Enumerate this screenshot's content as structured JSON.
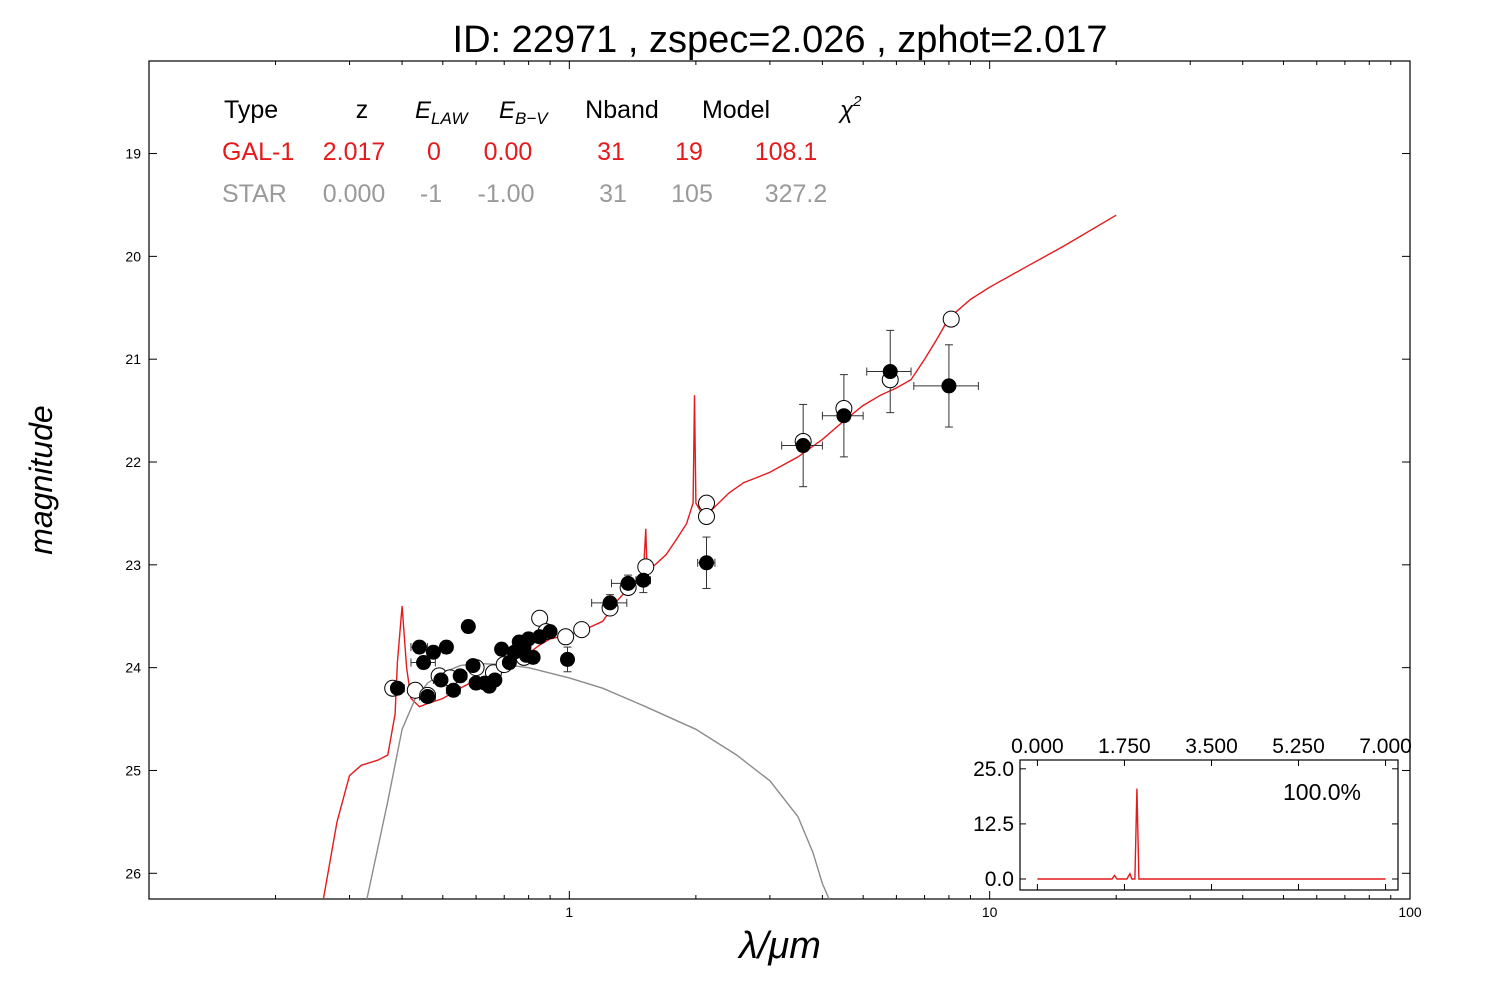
{
  "chart_data": [
    {
      "type": "scatter",
      "title": "ID:  22971 , zspec=2.026 , zphot=2.017",
      "xlabel": "λ/μm",
      "ylabel": "magnitude",
      "x_scale": "log",
      "xlim": [
        0.1,
        100
      ],
      "ylim": [
        26.25,
        18.1
      ],
      "y_inverted": true,
      "grid": false,
      "x_ticks": [
        {
          "value": 1,
          "label": "1"
        },
        {
          "value": 10,
          "label": "10"
        },
        {
          "value": 100,
          "label": "100"
        }
      ],
      "y_ticks": [
        {
          "value": 19,
          "label": "19"
        },
        {
          "value": 20,
          "label": "20"
        },
        {
          "value": 21,
          "label": "21"
        },
        {
          "value": 22,
          "label": "22"
        },
        {
          "value": 23,
          "label": "23"
        },
        {
          "value": 24,
          "label": "24"
        },
        {
          "value": 25,
          "label": "25"
        },
        {
          "value": 26,
          "label": "26"
        }
      ],
      "fit_table": {
        "headers": [
          "Type",
          "z",
          "E_LAW",
          "E_B−V",
          "Nband",
          "Model",
          "χ²"
        ],
        "rows": [
          {
            "type": "GAL-1",
            "z": "2.017",
            "elaw": "0",
            "ebv": "0.00",
            "nband": "31",
            "model": "19",
            "chi2": "108.1",
            "color": "#e41a1c"
          },
          {
            "type": "STAR",
            "z": "0.000",
            "elaw": "-1",
            "ebv": "-1.00",
            "nband": "31",
            "model": "105",
            "chi2": "327.2",
            "color": "#9a9a9a"
          }
        ]
      },
      "colors": {
        "galaxy_model": "#e41a1c",
        "star_model": "#8c8c8c",
        "observed": "#000000",
        "model_mag": "#ffffff"
      },
      "series": [
        {
          "kind": "line",
          "color": "#e41a1c",
          "points": [
            [
              0.26,
              26.3
            ],
            [
              0.28,
              25.5
            ],
            [
              0.3,
              25.05
            ],
            [
              0.32,
              24.95
            ],
            [
              0.35,
              24.9
            ],
            [
              0.37,
              24.85
            ],
            [
              0.385,
              24.45
            ],
            [
              0.39,
              23.95
            ],
            [
              0.4,
              23.4
            ],
            [
              0.41,
              24.0
            ],
            [
              0.42,
              24.3
            ],
            [
              0.44,
              24.38
            ],
            [
              0.46,
              24.35
            ],
            [
              0.5,
              24.3
            ],
            [
              0.55,
              24.2
            ],
            [
              0.6,
              24.12
            ],
            [
              0.65,
              24.07
            ],
            [
              0.7,
              24.0
            ],
            [
              0.75,
              23.93
            ],
            [
              0.8,
              23.86
            ],
            [
              0.85,
              23.78
            ],
            [
              0.9,
              23.72
            ],
            [
              1.0,
              23.68
            ],
            [
              1.1,
              23.62
            ],
            [
              1.2,
              23.55
            ],
            [
              1.3,
              23.35
            ],
            [
              1.4,
              23.2
            ],
            [
              1.5,
              23.08
            ],
            [
              1.52,
              22.65
            ],
            [
              1.53,
              23.05
            ],
            [
              1.6,
              23.0
            ],
            [
              1.7,
              22.9
            ],
            [
              1.8,
              22.75
            ],
            [
              1.9,
              22.6
            ],
            [
              1.97,
              22.4
            ],
            [
              1.985,
              21.35
            ],
            [
              2.0,
              22.4
            ],
            [
              2.1,
              22.55
            ],
            [
              2.2,
              22.45
            ],
            [
              2.4,
              22.3
            ],
            [
              2.6,
              22.2
            ],
            [
              2.8,
              22.15
            ],
            [
              3.0,
              22.1
            ],
            [
              3.5,
              21.95
            ],
            [
              4.0,
              21.78
            ],
            [
              4.5,
              21.6
            ],
            [
              5.0,
              21.45
            ],
            [
              5.5,
              21.35
            ],
            [
              6.0,
              21.28
            ],
            [
              6.5,
              21.2
            ],
            [
              7.0,
              21.0
            ],
            [
              7.5,
              20.8
            ],
            [
              8.0,
              20.6
            ],
            [
              9.0,
              20.42
            ],
            [
              10.0,
              20.3
            ],
            [
              12.0,
              20.12
            ],
            [
              15.0,
              19.9
            ],
            [
              20.0,
              19.6
            ]
          ]
        },
        {
          "kind": "line",
          "color": "#8c8c8c",
          "points": [
            [
              0.33,
              26.3
            ],
            [
              0.37,
              25.3
            ],
            [
              0.4,
              24.6
            ],
            [
              0.43,
              24.3
            ],
            [
              0.46,
              24.15
            ],
            [
              0.5,
              24.05
            ],
            [
              0.55,
              23.98
            ],
            [
              0.6,
              23.96
            ],
            [
              0.7,
              23.97
            ],
            [
              0.8,
              24.0
            ],
            [
              1.0,
              24.1
            ],
            [
              1.2,
              24.2
            ],
            [
              1.5,
              24.37
            ],
            [
              2.0,
              24.6
            ],
            [
              2.5,
              24.85
            ],
            [
              3.0,
              25.1
            ],
            [
              3.5,
              25.45
            ],
            [
              3.8,
              25.8
            ],
            [
              4.0,
              26.1
            ],
            [
              4.15,
              26.3
            ]
          ]
        },
        {
          "kind": "scatter",
          "marker": "filled",
          "color": "#000000",
          "points": [
            {
              "x": 0.39,
              "y": 24.2,
              "xerr": 0.015,
              "yerr": 0.05
            },
            {
              "x": 0.44,
              "y": 23.8,
              "xerr": 0.02,
              "yerr": 0.06
            },
            {
              "x": 0.45,
              "y": 23.95,
              "xerr": 0.03,
              "yerr": 0.06
            },
            {
              "x": 0.46,
              "y": 24.28,
              "xerr": 0.02,
              "yerr": 0.06
            },
            {
              "x": 0.475,
              "y": 23.85,
              "xerr": 0.015,
              "yerr": 0.06
            },
            {
              "x": 0.495,
              "y": 24.12,
              "xerr": 0.02,
              "yerr": 0.06
            },
            {
              "x": 0.51,
              "y": 23.8,
              "xerr": 0.015,
              "yerr": 0.06
            },
            {
              "x": 0.53,
              "y": 24.22,
              "xerr": 0.02,
              "yerr": 0.06
            },
            {
              "x": 0.55,
              "y": 24.08,
              "xerr": 0.02,
              "yerr": 0.06
            },
            {
              "x": 0.575,
              "y": 23.6,
              "xerr": 0.015,
              "yerr": 0.06
            },
            {
              "x": 0.59,
              "y": 23.98,
              "xerr": 0.02,
              "yerr": 0.06
            },
            {
              "x": 0.6,
              "y": 24.15,
              "xerr": 0.02,
              "yerr": 0.06
            },
            {
              "x": 0.63,
              "y": 24.15,
              "xerr": 0.02,
              "yerr": 0.06
            },
            {
              "x": 0.645,
              "y": 24.18,
              "xerr": 0.02,
              "yerr": 0.06
            },
            {
              "x": 0.665,
              "y": 24.12,
              "xerr": 0.02,
              "yerr": 0.06
            },
            {
              "x": 0.69,
              "y": 23.82,
              "xerr": 0.02,
              "yerr": 0.06
            },
            {
              "x": 0.72,
              "y": 23.95,
              "xerr": 0.02,
              "yerr": 0.06
            },
            {
              "x": 0.74,
              "y": 23.85,
              "xerr": 0.02,
              "yerr": 0.06
            },
            {
              "x": 0.76,
              "y": 23.75,
              "xerr": 0.02,
              "yerr": 0.06
            },
            {
              "x": 0.78,
              "y": 23.8,
              "xerr": 0.02,
              "yerr": 0.06
            },
            {
              "x": 0.79,
              "y": 23.88,
              "xerr": 0.02,
              "yerr": 0.06
            },
            {
              "x": 0.8,
              "y": 23.72,
              "xerr": 0.02,
              "yerr": 0.06
            },
            {
              "x": 0.82,
              "y": 23.9,
              "xerr": 0.02,
              "yerr": 0.06
            },
            {
              "x": 0.85,
              "y": 23.7,
              "xerr": 0.02,
              "yerr": 0.06
            },
            {
              "x": 0.9,
              "y": 23.65,
              "xerr": 0.02,
              "yerr": 0.06
            },
            {
              "x": 0.99,
              "y": 23.92,
              "xerr": 0.03,
              "yerr": 0.12
            },
            {
              "x": 1.25,
              "y": 23.37,
              "xerr": 0.12,
              "yerr": 0.08
            },
            {
              "x": 1.38,
              "y": 23.18,
              "xerr": 0.12,
              "yerr": 0.08
            },
            {
              "x": 1.5,
              "y": 23.15,
              "xerr": 0.06,
              "yerr": 0.12
            },
            {
              "x": 2.12,
              "y": 22.98,
              "xerr": 0.1,
              "yerr": 0.25
            },
            {
              "x": 3.6,
              "y": 21.84,
              "xerr": 0.4,
              "yerr": 0.4
            },
            {
              "x": 4.5,
              "y": 21.55,
              "xerr": 0.5,
              "yerr": 0.4
            },
            {
              "x": 5.8,
              "y": 21.12,
              "xerr": 0.7,
              "yerr": 0.4
            },
            {
              "x": 8.0,
              "y": 21.26,
              "xerr": 1.4,
              "yerr": 0.4
            }
          ]
        },
        {
          "kind": "scatter",
          "marker": "open",
          "color": "#000000",
          "points": [
            {
              "x": 0.38,
              "y": 24.2
            },
            {
              "x": 0.43,
              "y": 24.22
            },
            {
              "x": 0.46,
              "y": 24.27
            },
            {
              "x": 0.49,
              "y": 24.08
            },
            {
              "x": 0.52,
              "y": 24.1
            },
            {
              "x": 0.6,
              "y": 24.0
            },
            {
              "x": 0.66,
              "y": 24.05
            },
            {
              "x": 0.7,
              "y": 23.97
            },
            {
              "x": 0.76,
              "y": 23.85
            },
            {
              "x": 0.78,
              "y": 23.9
            },
            {
              "x": 0.85,
              "y": 23.52
            },
            {
              "x": 0.88,
              "y": 23.65
            },
            {
              "x": 0.98,
              "y": 23.7
            },
            {
              "x": 1.07,
              "y": 23.63
            },
            {
              "x": 1.25,
              "y": 23.42
            },
            {
              "x": 1.38,
              "y": 23.22
            },
            {
              "x": 1.52,
              "y": 23.02
            },
            {
              "x": 2.12,
              "y": 22.4
            },
            {
              "x": 2.12,
              "y": 22.53
            },
            {
              "x": 3.6,
              "y": 21.8
            },
            {
              "x": 4.5,
              "y": 21.48
            },
            {
              "x": 5.8,
              "y": 21.2
            },
            {
              "x": 8.1,
              "y": 20.61
            }
          ]
        }
      ]
    },
    {
      "type": "line",
      "inset": true,
      "placement": "bottom-right",
      "xlim": [
        -0.35,
        7.25
      ],
      "ylim": [
        -2.5,
        27
      ],
      "x_ticks": [
        {
          "value": 0,
          "label": "0.000"
        },
        {
          "value": 1.75,
          "label": "1.750"
        },
        {
          "value": 3.5,
          "label": "3.500"
        },
        {
          "value": 5.25,
          "label": "5.250"
        },
        {
          "value": 7,
          "label": "7.000"
        }
      ],
      "y_ticks": [
        {
          "value": 0,
          "label": "0.0"
        },
        {
          "value": 12.5,
          "label": "12.5"
        },
        {
          "value": 25,
          "label": "25.0"
        }
      ],
      "annotation": "100.0%",
      "color": "#e41a1c",
      "points": [
        [
          0,
          0
        ],
        [
          1.5,
          0
        ],
        [
          1.55,
          0.8
        ],
        [
          1.6,
          0
        ],
        [
          1.8,
          0
        ],
        [
          1.86,
          1.2
        ],
        [
          1.9,
          0
        ],
        [
          1.96,
          0
        ],
        [
          2.0,
          20.5
        ],
        [
          2.04,
          0
        ],
        [
          7,
          0
        ]
      ]
    }
  ]
}
